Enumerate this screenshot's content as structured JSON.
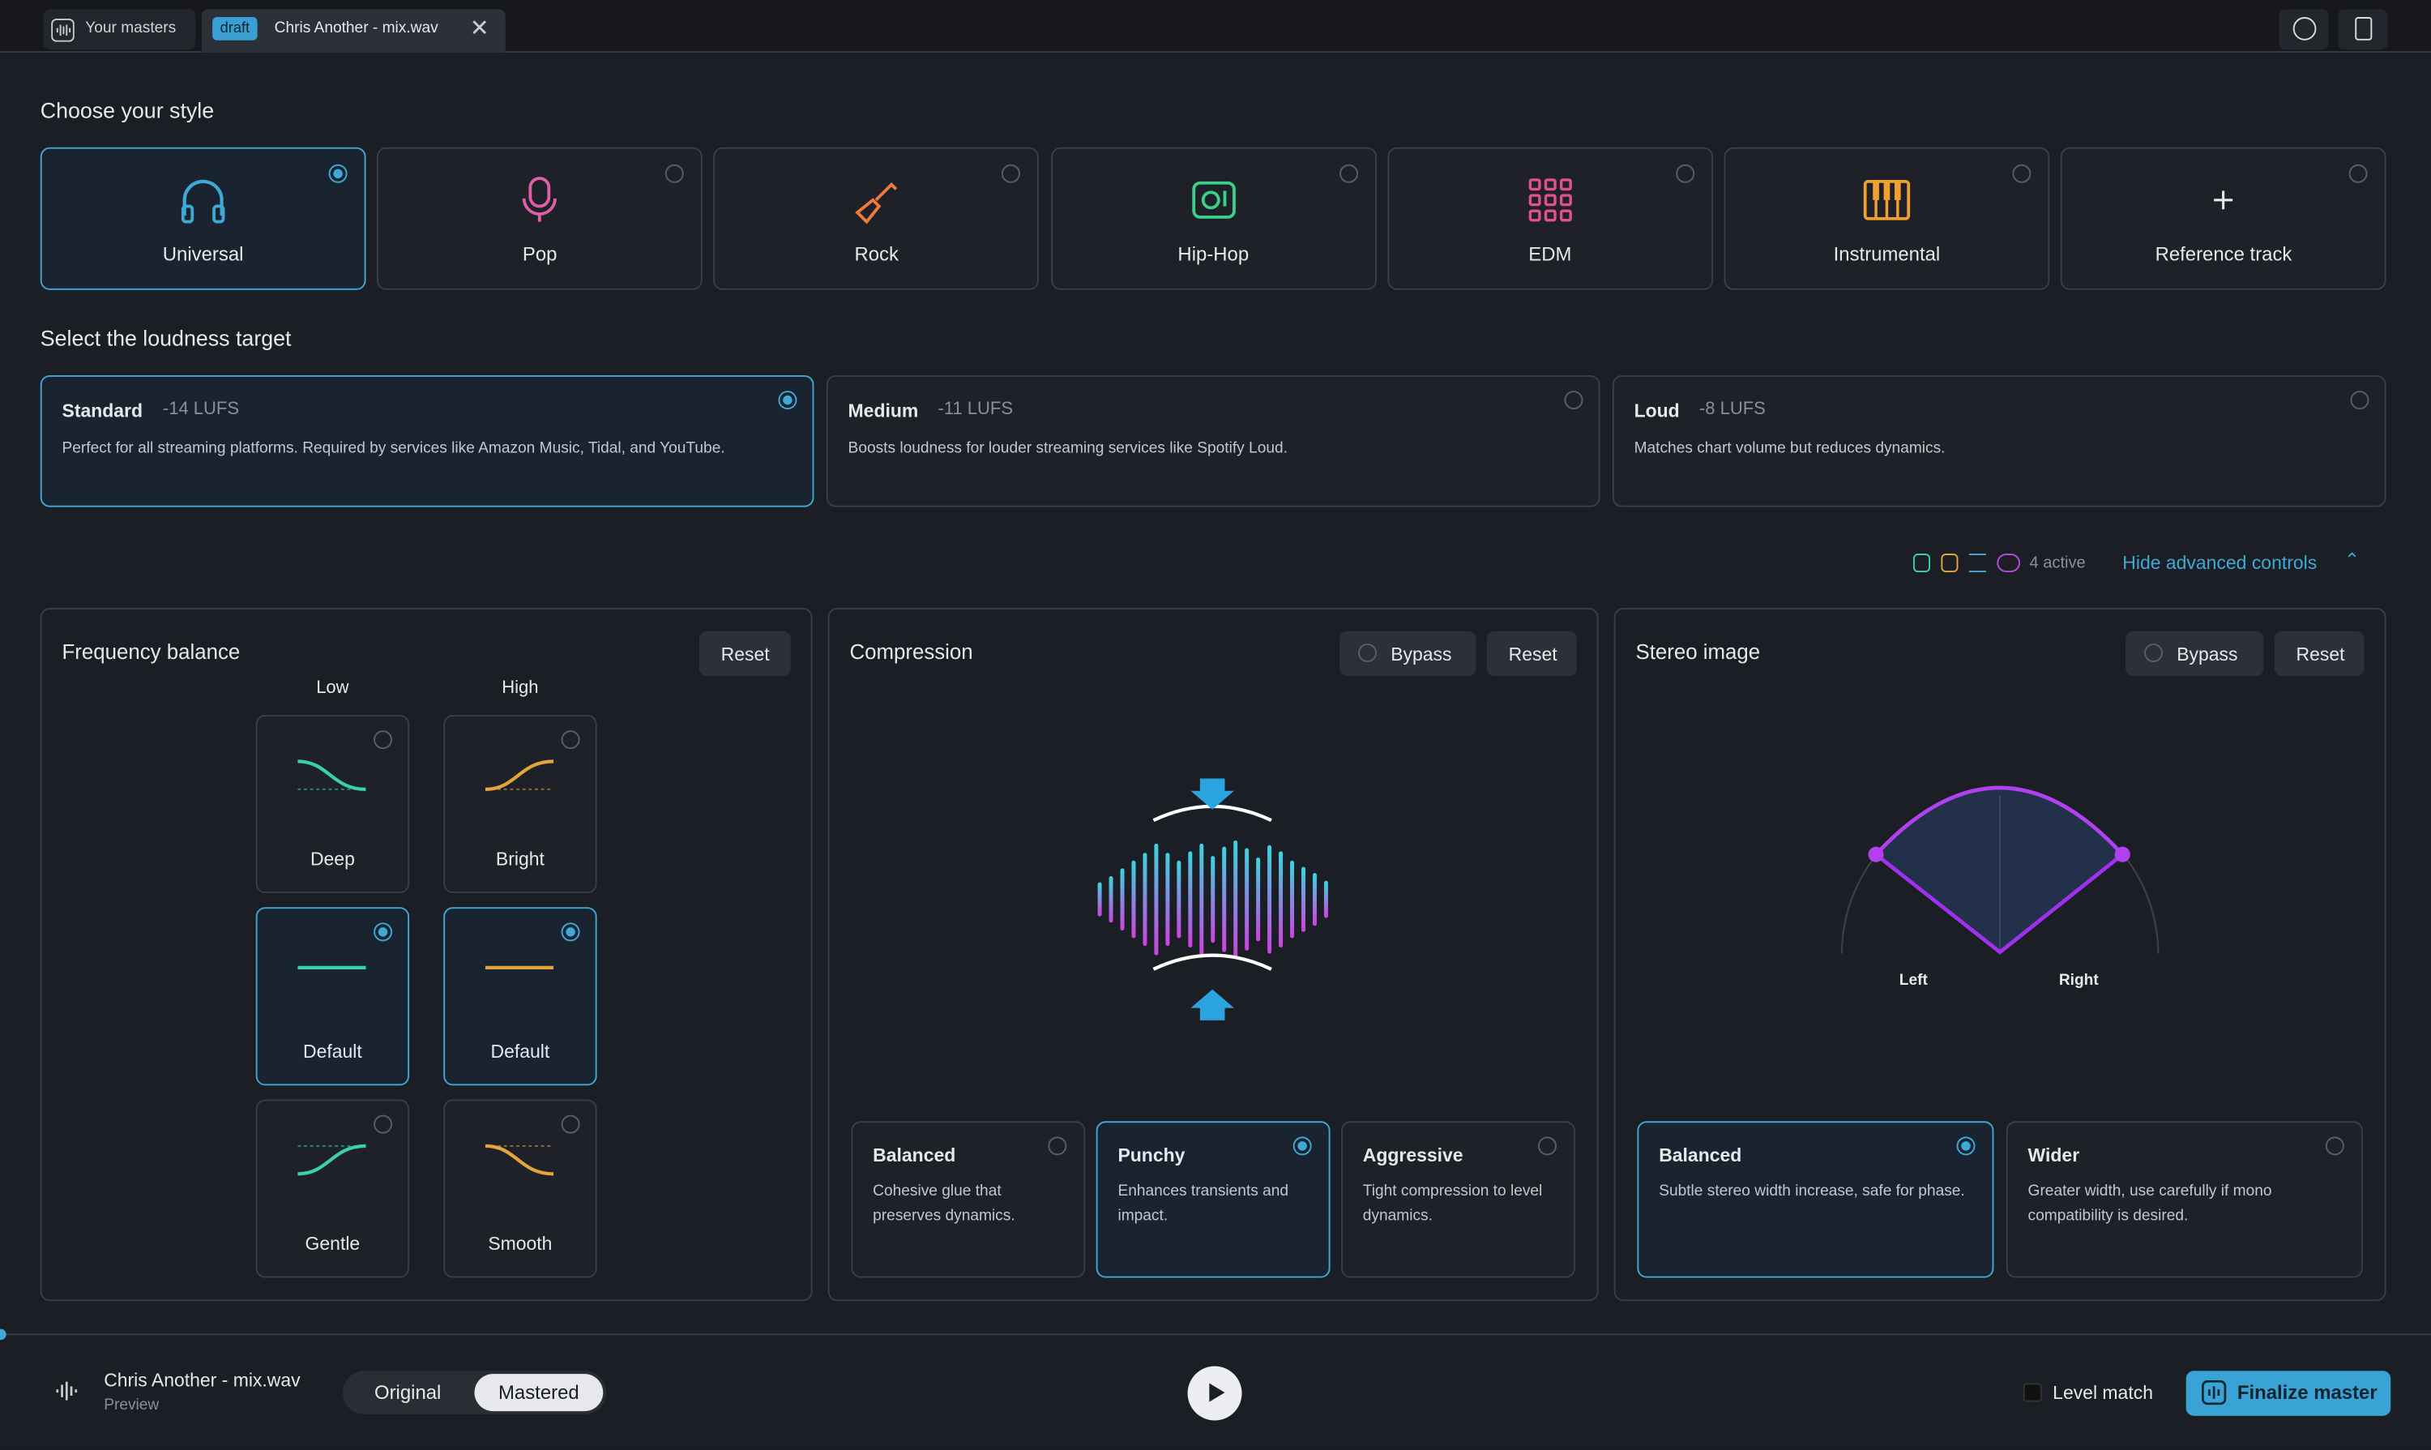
{
  "tabs": {
    "home": "Your masters",
    "draft_badge": "draft",
    "file": "Chris Another - mix.wav"
  },
  "style": {
    "heading": "Choose your style",
    "options": [
      "Universal",
      "Pop",
      "Rock",
      "Hip-Hop",
      "EDM",
      "Instrumental",
      "Reference track"
    ],
    "selected": 0
  },
  "loudness": {
    "heading": "Select the loudness target",
    "selected": 0,
    "options": [
      {
        "name": "Standard",
        "lufs": "-14 LUFS",
        "description": "Perfect for all streaming platforms. Required by services like Amazon Music, Tidal, and YouTube."
      },
      {
        "name": "Medium",
        "lufs": "-11 LUFS",
        "description": "Boosts loudness for louder streaming services like Spotify Loud."
      },
      {
        "name": "Loud",
        "lufs": "-8 LUFS",
        "description": "Matches chart volume but reduces dynamics."
      }
    ]
  },
  "advanced": {
    "active": "4 active",
    "toggle": "Hide advanced controls"
  },
  "frequency": {
    "title": "Frequency balance",
    "reset": "Reset",
    "columns": [
      "Low",
      "High"
    ],
    "low": [
      "Deep",
      "Default",
      "Gentle"
    ],
    "high": [
      "Bright",
      "Default",
      "Smooth"
    ],
    "low_selected": 1,
    "high_selected": 1
  },
  "compression": {
    "title": "Compression",
    "bypass": "Bypass",
    "reset": "Reset",
    "selected": 1,
    "options": [
      {
        "name": "Balanced",
        "description": "Cohesive glue that preserves dynamics."
      },
      {
        "name": "Punchy",
        "description": "Enhances transients and impact."
      },
      {
        "name": "Aggressive",
        "description": "Tight compression to level dynamics."
      }
    ]
  },
  "stereo": {
    "title": "Stereo image",
    "bypass": "Bypass",
    "reset": "Reset",
    "labels": [
      "Left",
      "Right"
    ],
    "selected": 0,
    "options": [
      {
        "name": "Balanced",
        "description": "Subtle stereo width increase, safe for phase."
      },
      {
        "name": "Wider",
        "description": "Greater width, use carefully if mono compatibility is desired."
      }
    ]
  },
  "player": {
    "file": "Chris Another - mix.wav",
    "subtitle": "Preview",
    "modes": [
      "Original",
      "Mastered"
    ],
    "mode_selected": 1,
    "level_match": "Level match",
    "finalize": "Finalize master"
  }
}
